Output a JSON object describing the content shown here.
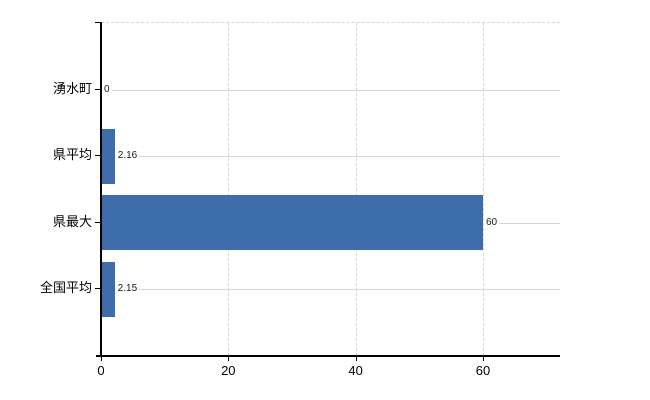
{
  "chart_data": {
    "type": "bar",
    "orientation": "horizontal",
    "title": "",
    "categories": [
      "湧水町",
      "県平均",
      "県最大",
      "全国平均"
    ],
    "values": [
      0,
      2.16,
      60,
      2.15
    ],
    "value_labels": [
      "0",
      "2.16",
      "60",
      "2.15"
    ],
    "x_ticks": [
      0,
      20,
      40,
      60
    ],
    "x_tick_labels": [
      "0",
      "20",
      "40",
      "60"
    ],
    "xlim": [
      0,
      72.1
    ],
    "xlabel": "",
    "ylabel": "",
    "legend": null,
    "grid": {
      "vertical": "dashed",
      "horizontal": "solid"
    },
    "colors": {
      "bar": "#3d6dab",
      "axis": "#000000",
      "grid_horizontal": "#d5dad1",
      "grid_vertical": "#d9d5d7",
      "background": "#ffffff",
      "text": "#000000"
    }
  }
}
